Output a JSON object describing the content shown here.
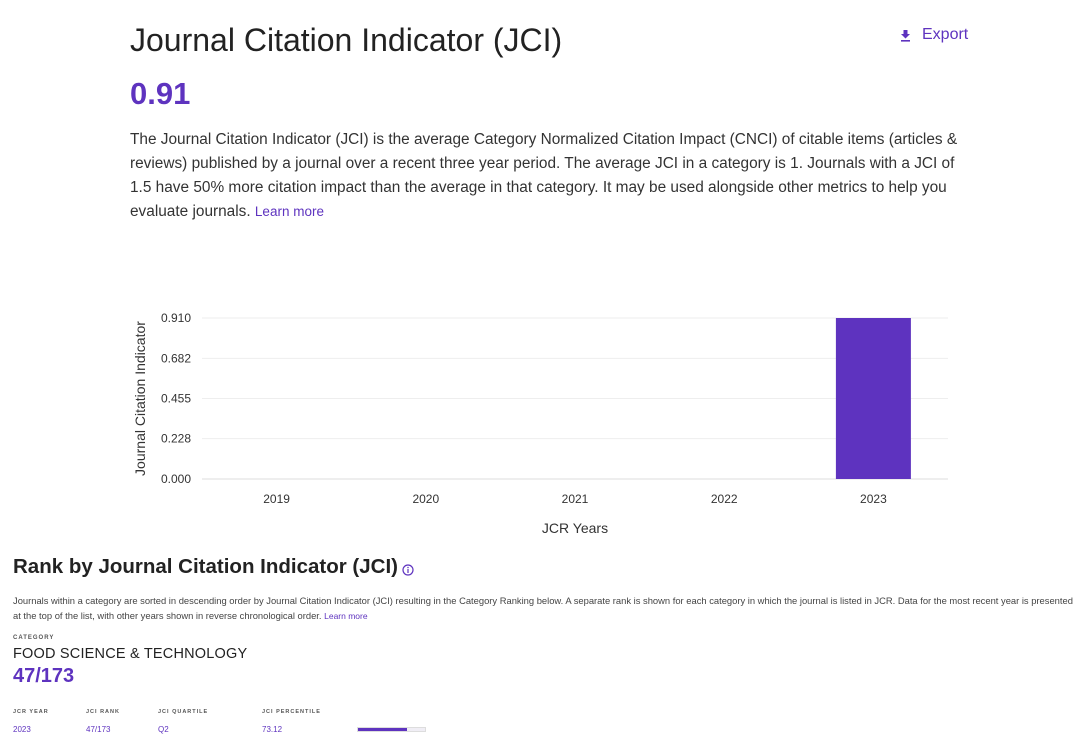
{
  "header": {
    "title": "Journal Citation Indicator (JCI)",
    "export_label": "Export",
    "value": "0.91"
  },
  "description": {
    "text": "The Journal Citation Indicator (JCI) is the average Category Normalized Citation Impact (CNCI) of citable items (articles & reviews) published by a journal over a recent three year period. The average JCI in a category is 1. Journals with a JCI of 1.5 have 50% more citation impact than the average in that category. It may be used alongside other metrics to help you evaluate journals.",
    "learn_more": "Learn more"
  },
  "chart_data": {
    "type": "bar",
    "categories": [
      "2019",
      "2020",
      "2021",
      "2022",
      "2023"
    ],
    "values": [
      null,
      null,
      null,
      null,
      0.91
    ],
    "xlabel": "JCR Years",
    "ylabel": "Journal Citation Indicator",
    "yticks": [
      "0.000",
      "0.228",
      "0.455",
      "0.682",
      "0.910"
    ],
    "ylim": [
      0,
      0.91
    ],
    "grid": true,
    "bar_color": "#5e33bf"
  },
  "rank_section": {
    "title": "Rank by Journal Citation Indicator (JCI)",
    "description": "Journals within a category are sorted in descending order by Journal Citation Indicator (JCI) resulting in the Category Ranking below. A separate rank is shown for each category in which the journal is listed in JCR. Data for the most recent year is presented at the top of the list, with other years shown in reverse chronological order.",
    "learn_more": "Learn more",
    "category_label": "CATEGORY",
    "category_name": "FOOD SCIENCE & TECHNOLOGY",
    "category_rank": "47/173",
    "table": {
      "headers": {
        "year": "JCR YEAR",
        "rank": "JCI RANK",
        "quartile": "JCI QUARTILE",
        "percentile": "JCI PERCENTILE"
      },
      "rows": [
        {
          "year": "2023",
          "rank": "47/173",
          "quartile": "Q2",
          "percentile": "73.12",
          "percentile_value": 73.12
        }
      ]
    }
  },
  "colors": {
    "accent": "#5e33bf",
    "text": "#333333"
  }
}
